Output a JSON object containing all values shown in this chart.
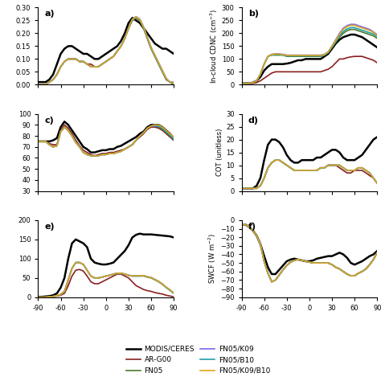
{
  "lat": [
    -90,
    -85,
    -80,
    -75,
    -70,
    -65,
    -60,
    -55,
    -50,
    -45,
    -40,
    -35,
    -30,
    -25,
    -20,
    -15,
    -10,
    -5,
    0,
    5,
    10,
    15,
    20,
    25,
    30,
    35,
    40,
    45,
    50,
    55,
    60,
    65,
    70,
    75,
    80,
    85,
    90
  ],
  "colors": {
    "MODIS": "#000000",
    "AR_G00": "#8B2020",
    "FN05": "#4A7A2A",
    "FN05_K09": "#7B68EE",
    "FN05_B10": "#20A0AA",
    "FN05_K09_B10": "#DAA520"
  },
  "legend": [
    "MODIS/CERES",
    "AR-G00",
    "FN05",
    "FN05/K09",
    "FN05/B10",
    "FN05/K09/B10"
  ],
  "panels": {
    "a": {
      "ylim": [
        0,
        0.3
      ],
      "yticks": [
        0.0,
        0.05,
        0.1,
        0.15,
        0.2,
        0.25,
        0.3
      ],
      "ylabel": "",
      "label": "a)",
      "MODIS": [
        0.01,
        0.01,
        0.01,
        0.02,
        0.04,
        0.08,
        0.12,
        0.14,
        0.15,
        0.15,
        0.14,
        0.13,
        0.12,
        0.12,
        0.11,
        0.1,
        0.1,
        0.11,
        0.12,
        0.13,
        0.14,
        0.15,
        0.17,
        0.2,
        0.24,
        0.26,
        0.25,
        0.24,
        0.22,
        0.2,
        0.18,
        0.16,
        0.15,
        0.14,
        0.14,
        0.13,
        0.12
      ],
      "AR_G00": [
        0.0,
        0.0,
        0.0,
        0.01,
        0.02,
        0.04,
        0.07,
        0.09,
        0.1,
        0.1,
        0.1,
        0.09,
        0.09,
        0.08,
        0.08,
        0.07,
        0.07,
        0.08,
        0.09,
        0.1,
        0.11,
        0.13,
        0.15,
        0.18,
        0.22,
        0.25,
        0.26,
        0.25,
        0.22,
        0.18,
        0.14,
        0.11,
        0.08,
        0.05,
        0.02,
        0.01,
        0.0
      ],
      "FN05": [
        0.0,
        0.0,
        0.0,
        0.01,
        0.02,
        0.04,
        0.07,
        0.09,
        0.1,
        0.1,
        0.1,
        0.09,
        0.09,
        0.08,
        0.07,
        0.07,
        0.07,
        0.08,
        0.09,
        0.1,
        0.11,
        0.13,
        0.15,
        0.18,
        0.22,
        0.25,
        0.26,
        0.25,
        0.22,
        0.18,
        0.14,
        0.11,
        0.08,
        0.05,
        0.02,
        0.01,
        0.0
      ],
      "FN05_K09": [
        0.0,
        0.0,
        0.0,
        0.01,
        0.02,
        0.04,
        0.07,
        0.09,
        0.1,
        0.1,
        0.1,
        0.09,
        0.09,
        0.08,
        0.07,
        0.07,
        0.07,
        0.08,
        0.09,
        0.1,
        0.11,
        0.13,
        0.15,
        0.18,
        0.22,
        0.255,
        0.265,
        0.255,
        0.225,
        0.185,
        0.145,
        0.115,
        0.085,
        0.055,
        0.025,
        0.01,
        0.01
      ],
      "FN05_B10": [
        0.0,
        0.0,
        0.0,
        0.01,
        0.02,
        0.04,
        0.07,
        0.09,
        0.1,
        0.1,
        0.1,
        0.09,
        0.09,
        0.08,
        0.07,
        0.07,
        0.07,
        0.08,
        0.09,
        0.1,
        0.11,
        0.13,
        0.15,
        0.18,
        0.22,
        0.252,
        0.262,
        0.252,
        0.222,
        0.182,
        0.142,
        0.112,
        0.082,
        0.052,
        0.022,
        0.01,
        0.005
      ],
      "FN05_K09_B10": [
        0.0,
        0.0,
        0.0,
        0.01,
        0.02,
        0.04,
        0.07,
        0.09,
        0.1,
        0.1,
        0.1,
        0.09,
        0.09,
        0.08,
        0.07,
        0.07,
        0.07,
        0.08,
        0.09,
        0.1,
        0.11,
        0.13,
        0.15,
        0.18,
        0.22,
        0.254,
        0.264,
        0.254,
        0.224,
        0.184,
        0.144,
        0.114,
        0.084,
        0.054,
        0.024,
        0.01,
        0.005
      ]
    },
    "b": {
      "ylim": [
        0,
        300
      ],
      "yticks": [
        0,
        50,
        100,
        150,
        200,
        250,
        300
      ],
      "ylabel": "In-cloud CDNC (cm$^{-3}$)",
      "label": "b)",
      "MODIS": [
        5,
        5,
        5,
        8,
        15,
        30,
        55,
        70,
        80,
        80,
        80,
        80,
        82,
        85,
        90,
        95,
        95,
        100,
        100,
        100,
        100,
        100,
        110,
        120,
        140,
        160,
        175,
        185,
        190,
        195,
        195,
        190,
        185,
        175,
        165,
        155,
        145
      ],
      "AR_G00": [
        5,
        5,
        5,
        5,
        8,
        15,
        25,
        35,
        45,
        50,
        50,
        50,
        50,
        50,
        50,
        50,
        50,
        50,
        50,
        50,
        50,
        50,
        55,
        60,
        70,
        85,
        100,
        100,
        105,
        108,
        110,
        110,
        110,
        105,
        100,
        95,
        85
      ],
      "FN05": [
        5,
        5,
        5,
        8,
        15,
        40,
        80,
        110,
        115,
        115,
        115,
        115,
        110,
        110,
        110,
        110,
        110,
        110,
        110,
        110,
        110,
        110,
        115,
        125,
        145,
        165,
        185,
        200,
        210,
        215,
        215,
        210,
        205,
        200,
        195,
        190,
        180
      ],
      "FN05_K09": [
        5,
        5,
        5,
        8,
        15,
        40,
        80,
        110,
        118,
        120,
        120,
        118,
        115,
        115,
        115,
        115,
        115,
        115,
        115,
        115,
        115,
        115,
        118,
        128,
        150,
        175,
        200,
        220,
        230,
        235,
        235,
        230,
        225,
        220,
        215,
        205,
        195
      ],
      "FN05_B10": [
        5,
        5,
        5,
        8,
        15,
        40,
        80,
        110,
        116,
        117,
        117,
        116,
        112,
        112,
        112,
        112,
        112,
        112,
        112,
        112,
        112,
        112,
        115,
        125,
        147,
        168,
        190,
        207,
        217,
        222,
        222,
        217,
        212,
        207,
        202,
        197,
        187
      ],
      "FN05_K09_B10": [
        5,
        5,
        5,
        8,
        15,
        40,
        80,
        110,
        117,
        119,
        119,
        117,
        114,
        114,
        114,
        114,
        114,
        114,
        114,
        114,
        114,
        114,
        117,
        127,
        149,
        172,
        196,
        216,
        226,
        231,
        231,
        226,
        221,
        216,
        211,
        203,
        192
      ]
    },
    "c": {
      "ylim": [
        30,
        100
      ],
      "yticks": [
        30,
        40,
        50,
        60,
        70,
        80,
        90,
        100
      ],
      "ylabel": "",
      "label": "c)",
      "MODIS": [
        75,
        75,
        75,
        75,
        76,
        78,
        88,
        93,
        90,
        85,
        80,
        75,
        70,
        68,
        65,
        65,
        66,
        67,
        67,
        68,
        68,
        70,
        71,
        73,
        75,
        77,
        79,
        82,
        84,
        88,
        90,
        90,
        90,
        88,
        85,
        82,
        78
      ],
      "AR_G00": [
        75,
        75,
        75,
        73,
        72,
        72,
        85,
        90,
        87,
        82,
        76,
        71,
        67,
        65,
        63,
        62,
        63,
        64,
        64,
        65,
        65,
        66,
        67,
        68,
        70,
        72,
        76,
        79,
        82,
        86,
        88,
        88,
        87,
        85,
        82,
        79,
        76
      ],
      "FN05": [
        75,
        75,
        75,
        72,
        70,
        71,
        84,
        88,
        85,
        80,
        74,
        70,
        65,
        63,
        62,
        62,
        62,
        63,
        63,
        64,
        64,
        65,
        66,
        68,
        70,
        72,
        76,
        80,
        83,
        87,
        89,
        89,
        88,
        86,
        83,
        80,
        77
      ],
      "FN05_K09": [
        75,
        75,
        75,
        72,
        70,
        71,
        84,
        88,
        85,
        80,
        74,
        70,
        65,
        63,
        62,
        62,
        62,
        63,
        63,
        64,
        64,
        65,
        66,
        68,
        70,
        72,
        76,
        80,
        83,
        87,
        89,
        89,
        89,
        87,
        84,
        81,
        78
      ],
      "FN05_B10": [
        75,
        75,
        75,
        72,
        70,
        71,
        84,
        88,
        85,
        80,
        74,
        70,
        65,
        63,
        62,
        62,
        62,
        63,
        63,
        64,
        64,
        65,
        66,
        68,
        70,
        72,
        76,
        80,
        83,
        87,
        89,
        90,
        89,
        87,
        84,
        81,
        77
      ],
      "FN05_K09_B10": [
        75,
        75,
        75,
        72,
        70,
        71,
        84,
        88,
        85,
        80,
        74,
        70,
        65,
        63,
        62,
        62,
        62,
        63,
        63,
        64,
        64,
        65,
        66,
        68,
        70,
        72,
        76,
        80,
        83,
        87,
        89,
        90,
        90,
        88,
        85,
        82,
        79
      ]
    },
    "d": {
      "ylim": [
        0,
        30
      ],
      "yticks": [
        0,
        5,
        10,
        15,
        20,
        25,
        30
      ],
      "ylabel": "COT (unitless)",
      "label": "d)",
      "MODIS": [
        1,
        1,
        1,
        1,
        2,
        5,
        12,
        18,
        20,
        20,
        19,
        17,
        14,
        12,
        11,
        11,
        12,
        12,
        12,
        12,
        13,
        13,
        14,
        15,
        16,
        16,
        15,
        13,
        12,
        12,
        12,
        13,
        14,
        16,
        18,
        20,
        21
      ],
      "AR_G00": [
        1,
        1,
        1,
        1,
        1,
        2,
        5,
        9,
        11,
        12,
        12,
        11,
        10,
        9,
        8,
        8,
        8,
        8,
        8,
        8,
        8,
        9,
        9,
        10,
        10,
        10,
        9,
        8,
        7,
        7,
        8,
        8,
        8,
        7,
        6,
        5,
        3
      ],
      "FN05": [
        1,
        1,
        1,
        1,
        1,
        2,
        5,
        9,
        11,
        12,
        12,
        11,
        10,
        9,
        8,
        8,
        8,
        8,
        8,
        8,
        8,
        9,
        9,
        10,
        10,
        10,
        10,
        9,
        8,
        8,
        8,
        9,
        9,
        8,
        7,
        5,
        3
      ],
      "FN05_K09": [
        1,
        1,
        1,
        1,
        1,
        2,
        5,
        9,
        11,
        12,
        12,
        11,
        10,
        9,
        8,
        8,
        8,
        8,
        8,
        8,
        8,
        9,
        9,
        10,
        10,
        10,
        10,
        9,
        8,
        8,
        8,
        9,
        9,
        8,
        7,
        5,
        3
      ],
      "FN05_B10": [
        1,
        1,
        1,
        1,
        1,
        2,
        5,
        9,
        11,
        12,
        12,
        11,
        10,
        9,
        8,
        8,
        8,
        8,
        8,
        8,
        8,
        9,
        9,
        10,
        10,
        10,
        10,
        9,
        8,
        8,
        8,
        9,
        9,
        8,
        7,
        5,
        3
      ],
      "FN05_K09_B10": [
        1,
        1,
        1,
        1,
        1,
        2,
        5,
        9,
        11,
        12,
        12,
        11,
        10,
        9,
        8,
        8,
        8,
        8,
        8,
        8,
        8,
        9,
        9,
        10,
        10,
        10,
        10,
        9,
        8,
        8,
        8,
        9,
        9,
        8,
        7,
        5,
        3
      ]
    },
    "e": {
      "ylim": [
        0,
        200
      ],
      "yticks": [
        0,
        50,
        100,
        150,
        200
      ],
      "ylabel": "",
      "label": "e)",
      "MODIS": [
        1,
        1,
        2,
        3,
        5,
        10,
        25,
        50,
        100,
        140,
        150,
        145,
        140,
        130,
        100,
        90,
        87,
        85,
        85,
        87,
        90,
        100,
        110,
        120,
        135,
        155,
        162,
        165,
        163,
        163,
        163,
        162,
        161,
        160,
        159,
        158,
        155
      ],
      "AR_G00": [
        0,
        0,
        0,
        1,
        2,
        3,
        5,
        10,
        30,
        55,
        70,
        72,
        68,
        55,
        40,
        35,
        35,
        40,
        45,
        50,
        55,
        60,
        60,
        55,
        50,
        40,
        30,
        25,
        20,
        17,
        15,
        12,
        10,
        8,
        5,
        3,
        1
      ],
      "FN05": [
        0,
        0,
        0,
        1,
        2,
        4,
        7,
        15,
        45,
        75,
        90,
        90,
        85,
        70,
        55,
        50,
        50,
        52,
        55,
        57,
        60,
        62,
        62,
        60,
        57,
        55,
        55,
        55,
        55,
        52,
        50,
        45,
        40,
        33,
        25,
        18,
        10
      ],
      "FN05_K09": [
        0,
        0,
        0,
        1,
        2,
        4,
        7,
        15,
        45,
        75,
        90,
        90,
        85,
        70,
        55,
        50,
        50,
        52,
        55,
        57,
        60,
        62,
        62,
        60,
        57,
        55,
        55,
        56,
        56,
        53,
        51,
        46,
        41,
        34,
        26,
        19,
        11
      ],
      "FN05_B10": [
        0,
        0,
        0,
        1,
        2,
        4,
        7,
        15,
        45,
        75,
        90,
        90,
        85,
        70,
        55,
        50,
        50,
        52,
        55,
        57,
        60,
        62,
        62,
        60,
        57,
        55,
        55,
        55,
        56,
        53,
        51,
        46,
        41,
        34,
        25,
        18,
        10
      ],
      "FN05_K09_B10": [
        0,
        0,
        0,
        1,
        2,
        4,
        7,
        15,
        45,
        75,
        90,
        90,
        85,
        70,
        55,
        50,
        50,
        52,
        55,
        57,
        60,
        62,
        62,
        60,
        57,
        55,
        55,
        56,
        56,
        53,
        51,
        46,
        41,
        34,
        26,
        19,
        11
      ]
    },
    "f": {
      "ylim": [
        -90,
        0
      ],
      "yticks": [
        -90,
        -80,
        -70,
        -60,
        -50,
        -40,
        -30,
        -20,
        -10,
        0
      ],
      "ylabel": "SWCF (W m$^{-2}$)",
      "label": "f)",
      "MODIS": [
        -5,
        -5,
        -8,
        -12,
        -18,
        -28,
        -42,
        -55,
        -63,
        -63,
        -58,
        -53,
        -48,
        -46,
        -45,
        -46,
        -47,
        -48,
        -48,
        -47,
        -45,
        -44,
        -43,
        -42,
        -42,
        -40,
        -38,
        -40,
        -44,
        -50,
        -52,
        -50,
        -48,
        -45,
        -42,
        -40,
        -36
      ],
      "AR_G00": [
        -5,
        -5,
        -8,
        -12,
        -18,
        -28,
        -48,
        -62,
        -72,
        -70,
        -64,
        -58,
        -53,
        -49,
        -47,
        -46,
        -47,
        -48,
        -49,
        -50,
        -50,
        -50,
        -50,
        -50,
        -52,
        -55,
        -57,
        -60,
        -63,
        -65,
        -65,
        -62,
        -60,
        -57,
        -52,
        -46,
        -38
      ],
      "FN05": [
        -5,
        -5,
        -8,
        -12,
        -18,
        -28,
        -48,
        -62,
        -72,
        -70,
        -64,
        -58,
        -53,
        -49,
        -47,
        -46,
        -47,
        -48,
        -49,
        -50,
        -50,
        -50,
        -50,
        -50,
        -52,
        -55,
        -57,
        -60,
        -63,
        -65,
        -65,
        -62,
        -60,
        -57,
        -52,
        -46,
        -38
      ],
      "FN05_K09": [
        -5,
        -5,
        -8,
        -12,
        -18,
        -28,
        -48,
        -62,
        -72,
        -70,
        -64,
        -58,
        -53,
        -49,
        -47,
        -46,
        -47,
        -48,
        -49,
        -50,
        -50,
        -50,
        -50,
        -50,
        -52,
        -55,
        -57,
        -60,
        -63,
        -65,
        -65,
        -62,
        -60,
        -57,
        -52,
        -46,
        -38
      ],
      "FN05_B10": [
        -5,
        -5,
        -8,
        -12,
        -18,
        -28,
        -48,
        -62,
        -72,
        -70,
        -64,
        -58,
        -53,
        -49,
        -47,
        -46,
        -47,
        -48,
        -49,
        -50,
        -50,
        -50,
        -50,
        -50,
        -52,
        -55,
        -57,
        -60,
        -63,
        -65,
        -65,
        -62,
        -60,
        -57,
        -52,
        -46,
        -38
      ],
      "FN05_K09_B10": [
        -5,
        -5,
        -8,
        -12,
        -18,
        -28,
        -48,
        -62,
        -72,
        -70,
        -64,
        -58,
        -53,
        -49,
        -47,
        -46,
        -47,
        -48,
        -49,
        -50,
        -50,
        -50,
        -50,
        -50,
        -52,
        -55,
        -57,
        -60,
        -63,
        -65,
        -65,
        -62,
        -60,
        -57,
        -52,
        -46,
        -38
      ]
    }
  }
}
